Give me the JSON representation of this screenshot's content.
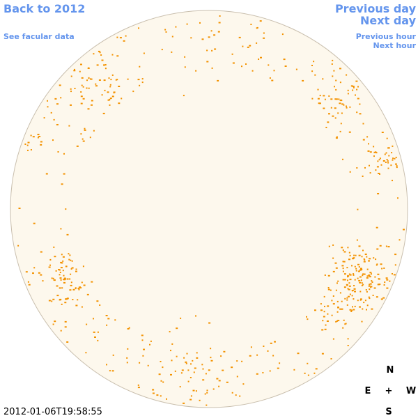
{
  "header": {
    "back_link": "Back to 2012",
    "facular_link": "See facular data",
    "previous_day": "Previous day",
    "next_day": "Next day",
    "previous_hour": "Previous hour",
    "next_hour": "Next hour"
  },
  "timestamp": "2012-01-06T19:58:55",
  "compass": {
    "north": "N",
    "east": "E",
    "center": "+",
    "west": "W",
    "south": "S"
  }
}
